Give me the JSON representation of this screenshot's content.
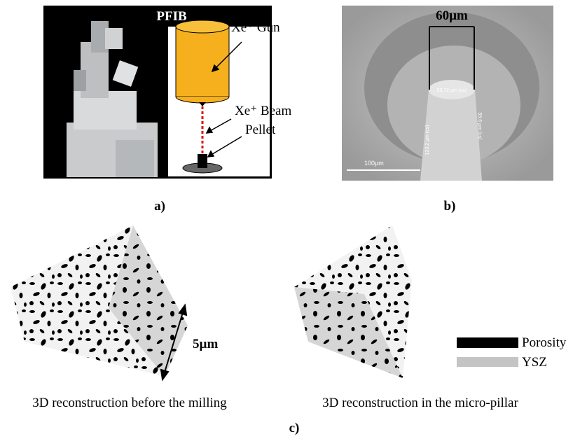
{
  "panel_a": {
    "title": "PFIB",
    "labels": [
      "Xe⁺ Gun",
      "Xe⁺ Beam",
      "Pellet"
    ],
    "tag": "a)"
  },
  "panel_b": {
    "width_label": "60µm",
    "measurements": [
      "59.72 µm (cs)",
      "123.2 µm (cs)",
      "59.6 µm (cs)"
    ],
    "scale_bar": "100µm",
    "tag": "b)"
  },
  "panel_c": {
    "scale": "5µm",
    "legend": [
      "Porosity",
      "YSZ"
    ],
    "captions": [
      "3D reconstruction before the milling",
      "3D reconstruction in the micro-pillar"
    ],
    "tag": "c)"
  }
}
